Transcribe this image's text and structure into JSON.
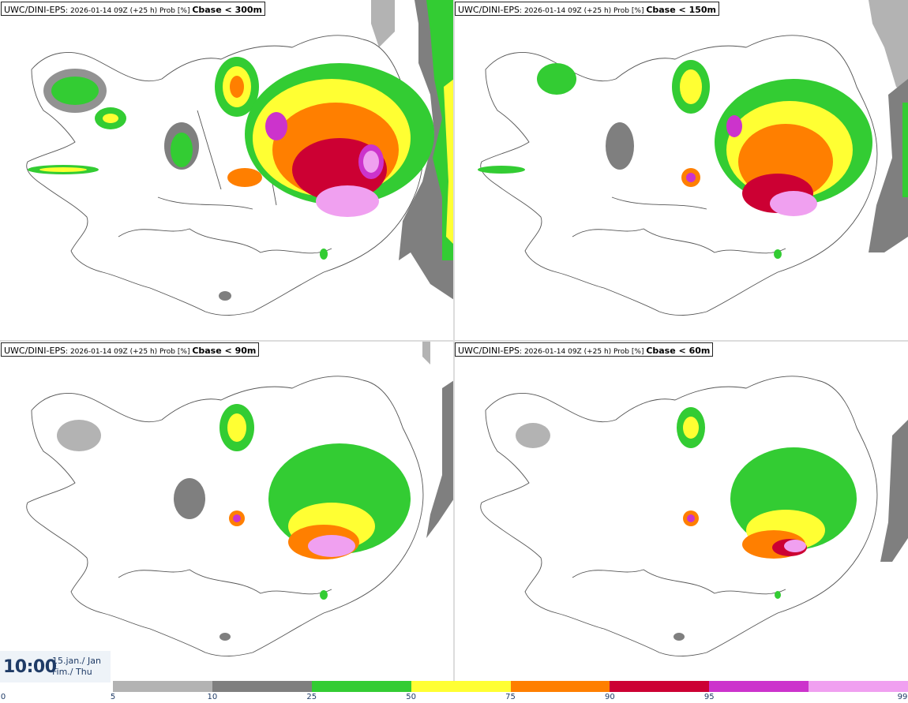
{
  "panels": [
    {
      "model": "UWC/DINI-EPS",
      "run": ": 2026-01-14 09Z (+25 h) Prob [%] ",
      "variable": "Cbase < 300m"
    },
    {
      "model": "UWC/DINI-EPS",
      "run": ": 2026-01-14 09Z (+25 h) Prob [%] ",
      "variable": "Cbase < 150m"
    },
    {
      "model": "UWC/DINI-EPS",
      "run": ": 2026-01-14 09Z (+25 h) Prob [%] ",
      "variable": "Cbase < 90m"
    },
    {
      "model": "UWC/DINI-EPS",
      "run": ": 2026-01-14 09Z (+25 h) Prob [%] ",
      "variable": "Cbase < 60m"
    }
  ],
  "valid_time": {
    "time": "10:00",
    "date_line1": "15.jan./ Jan",
    "date_line2": "Fim./ Thu"
  },
  "legend": {
    "ticks": [
      "0",
      "5",
      "10",
      "25",
      "50",
      "75",
      "90",
      "95",
      "99"
    ],
    "colors": [
      "#b3b3b3",
      "#7f7f7f",
      "#33cc33",
      "#ffff33",
      "#ff7f00",
      "#cc0033",
      "#cc33cc",
      "#f0a0f0"
    ]
  },
  "palette": {
    "grey_light": "#b3b3b3",
    "grey_dark": "#7f7f7f",
    "green": "#33cc33",
    "yellow": "#ffff33",
    "orange": "#ff7f00",
    "red": "#cc0033",
    "magenta": "#cc33cc",
    "pink": "#f0a0f0"
  }
}
